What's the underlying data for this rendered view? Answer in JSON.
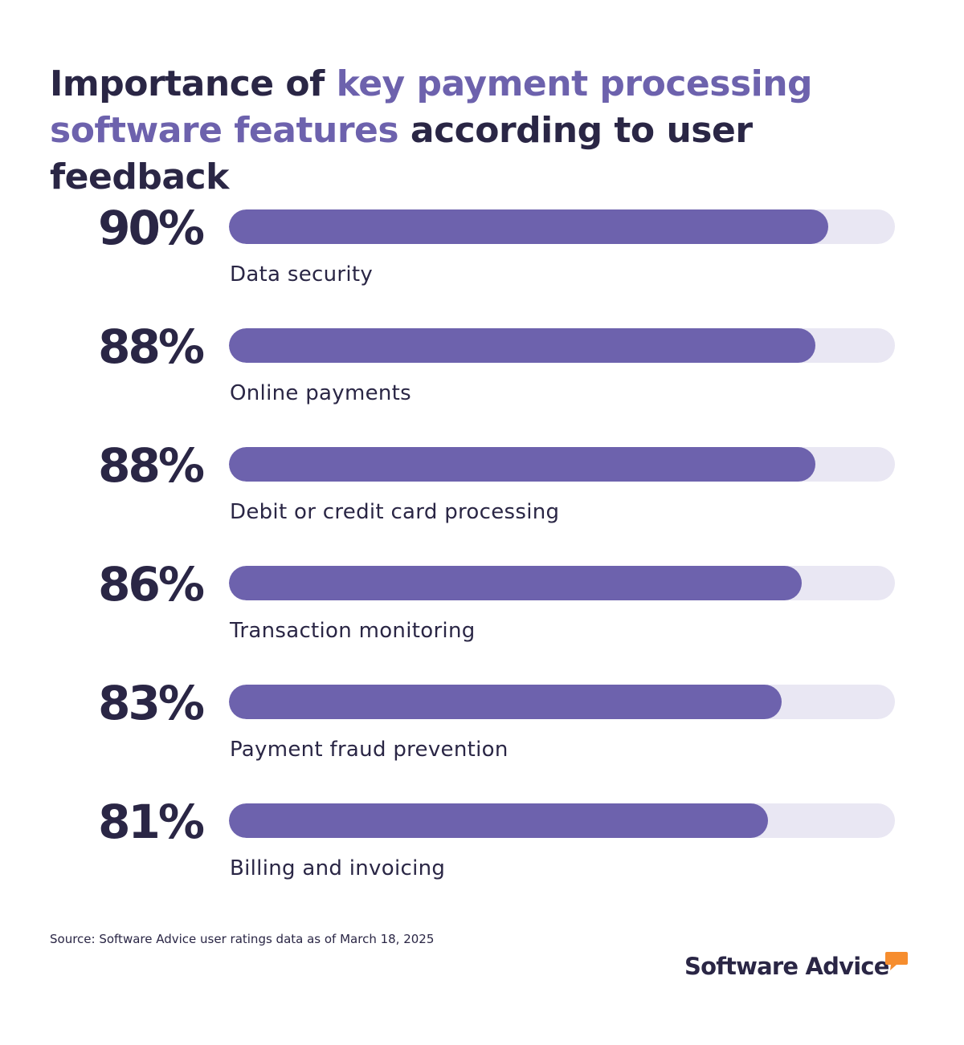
{
  "title": {
    "part1": "Importance of ",
    "part2": "key payment processing software features",
    "part3": " according to user feedback"
  },
  "colors": {
    "accent": "#6d62ad",
    "track": "#e9e7f3",
    "text": "#2a2645",
    "logo_bubble": "#f68d2e"
  },
  "chart_data": {
    "type": "bar",
    "orientation": "horizontal",
    "categories": [
      "Data security",
      "Online payments",
      "Debit or credit card processing",
      "Transaction monitoring",
      "Payment fraud prevention",
      "Billing and invoicing"
    ],
    "values": [
      90,
      88,
      88,
      86,
      83,
      81
    ],
    "value_labels": [
      "90%",
      "88%",
      "88%",
      "86%",
      "83%",
      "81%"
    ],
    "xlim": [
      0,
      100
    ],
    "grid": false,
    "legend": "none"
  },
  "source": "Source: Software Advice user ratings data as of March 18, 2025",
  "logo": {
    "text": "Software Advice",
    "icon": "speech-bubble-icon"
  }
}
